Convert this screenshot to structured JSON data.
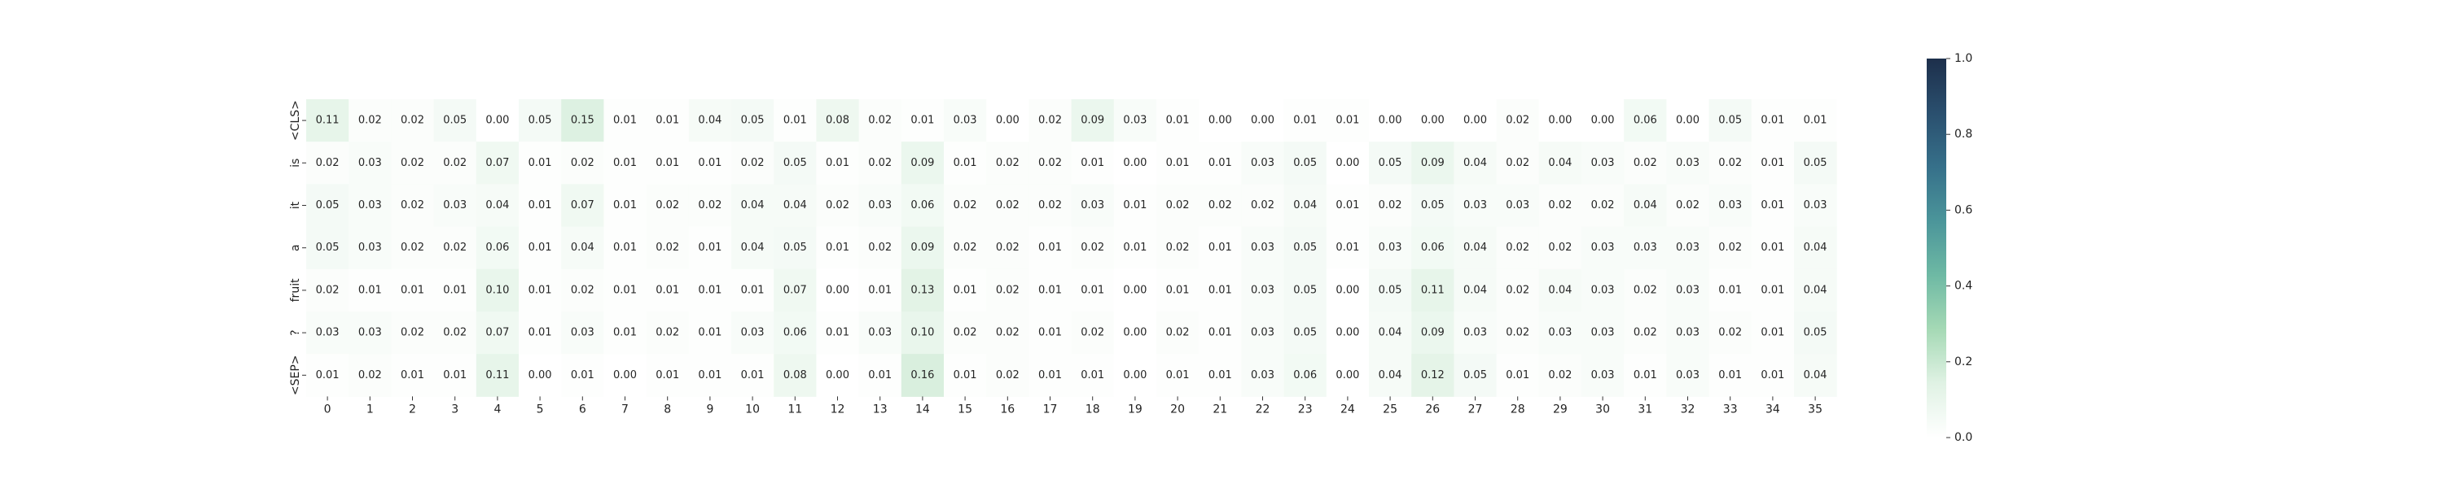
{
  "chart_data": {
    "type": "heatmap",
    "title": "",
    "xlabel": "",
    "ylabel": "",
    "x_ticks": [
      "0",
      "1",
      "2",
      "3",
      "4",
      "5",
      "6",
      "7",
      "8",
      "9",
      "10",
      "11",
      "12",
      "13",
      "14",
      "15",
      "16",
      "17",
      "18",
      "19",
      "20",
      "21",
      "22",
      "23",
      "24",
      "25",
      "26",
      "27",
      "28",
      "29",
      "30",
      "31",
      "32",
      "33",
      "34",
      "35"
    ],
    "y_ticks": [
      "<CLS>",
      "is",
      "it",
      "a",
      "fruit",
      "?",
      "<SEP>"
    ],
    "values": [
      [
        0.11,
        0.02,
        0.02,
        0.05,
        0.0,
        0.05,
        0.15,
        0.01,
        0.01,
        0.04,
        0.05,
        0.01,
        0.08,
        0.02,
        0.01,
        0.03,
        0.0,
        0.02,
        0.09,
        0.03,
        0.01,
        0.0,
        0.0,
        0.01,
        0.01,
        0.0,
        0.0,
        0.0,
        0.02,
        0.0,
        0.0,
        0.06,
        0.0,
        0.05,
        0.01,
        0.01
      ],
      [
        0.02,
        0.03,
        0.02,
        0.02,
        0.07,
        0.01,
        0.02,
        0.01,
        0.01,
        0.01,
        0.02,
        0.05,
        0.01,
        0.02,
        0.09,
        0.01,
        0.02,
        0.02,
        0.01,
        0.0,
        0.01,
        0.01,
        0.03,
        0.05,
        0.0,
        0.05,
        0.09,
        0.04,
        0.02,
        0.04,
        0.03,
        0.02,
        0.03,
        0.02,
        0.01,
        0.05
      ],
      [
        0.05,
        0.03,
        0.02,
        0.03,
        0.04,
        0.01,
        0.07,
        0.01,
        0.02,
        0.02,
        0.04,
        0.04,
        0.02,
        0.03,
        0.06,
        0.02,
        0.02,
        0.02,
        0.03,
        0.01,
        0.02,
        0.02,
        0.02,
        0.04,
        0.01,
        0.02,
        0.05,
        0.03,
        0.03,
        0.02,
        0.02,
        0.04,
        0.02,
        0.03,
        0.01,
        0.03
      ],
      [
        0.05,
        0.03,
        0.02,
        0.02,
        0.06,
        0.01,
        0.04,
        0.01,
        0.02,
        0.01,
        0.04,
        0.05,
        0.01,
        0.02,
        0.09,
        0.02,
        0.02,
        0.01,
        0.02,
        0.01,
        0.02,
        0.01,
        0.03,
        0.05,
        0.01,
        0.03,
        0.06,
        0.04,
        0.02,
        0.02,
        0.03,
        0.03,
        0.03,
        0.02,
        0.01,
        0.04
      ],
      [
        0.02,
        0.01,
        0.01,
        0.01,
        0.1,
        0.01,
        0.02,
        0.01,
        0.01,
        0.01,
        0.01,
        0.07,
        0.0,
        0.01,
        0.13,
        0.01,
        0.02,
        0.01,
        0.01,
        0.0,
        0.01,
        0.01,
        0.03,
        0.05,
        0.0,
        0.05,
        0.11,
        0.04,
        0.02,
        0.04,
        0.03,
        0.02,
        0.03,
        0.01,
        0.01,
        0.04
      ],
      [
        0.03,
        0.03,
        0.02,
        0.02,
        0.07,
        0.01,
        0.03,
        0.01,
        0.02,
        0.01,
        0.03,
        0.06,
        0.01,
        0.03,
        0.1,
        0.02,
        0.02,
        0.01,
        0.02,
        0.0,
        0.02,
        0.01,
        0.03,
        0.05,
        0.0,
        0.04,
        0.09,
        0.03,
        0.02,
        0.03,
        0.03,
        0.02,
        0.03,
        0.02,
        0.01,
        0.05
      ],
      [
        0.01,
        0.02,
        0.01,
        0.01,
        0.11,
        0.0,
        0.01,
        0.0,
        0.01,
        0.01,
        0.01,
        0.08,
        0.0,
        0.01,
        0.16,
        0.01,
        0.02,
        0.01,
        0.01,
        0.0,
        0.01,
        0.01,
        0.03,
        0.06,
        0.0,
        0.04,
        0.12,
        0.05,
        0.01,
        0.02,
        0.03,
        0.01,
        0.03,
        0.01,
        0.01,
        0.04
      ]
    ],
    "colorbar": {
      "min": 0.0,
      "max": 1.0,
      "ticks": [
        "0.0",
        "0.2",
        "0.4",
        "0.6",
        "0.8",
        "1.0"
      ],
      "colors": [
        "#ffffff",
        "#e0f2e4",
        "#a5d9b5",
        "#6eb9a4",
        "#4b959a",
        "#36708a",
        "#2a4f6e",
        "#1d2f4b"
      ]
    },
    "annotation_colors": {
      "dark_text": "#262626",
      "light_text": "#ffffff"
    }
  }
}
